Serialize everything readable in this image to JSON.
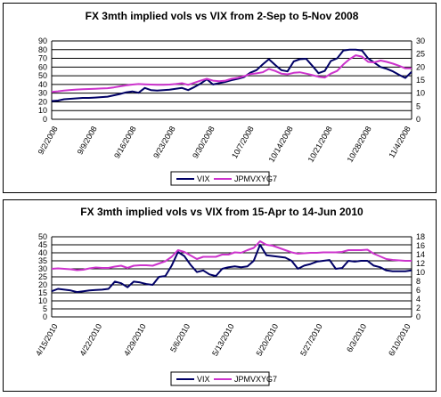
{
  "chart_data": [
    {
      "type": "line",
      "title": "FX 3mth implied vols vs VIX from 2-Sep to 5-Nov 2008",
      "x_tick_labels": [
        "9/2/2008",
        "9/9/2008",
        "9/16/2008",
        "9/23/2008",
        "9/30/2008",
        "10/7/2008",
        "10/14/2008",
        "10/21/2008",
        "10/28/2008",
        "11/4/2008"
      ],
      "ylim_left": [
        0,
        90
      ],
      "yticks_left": [
        "0",
        "10",
        "20",
        "30",
        "40",
        "50",
        "60",
        "70",
        "80",
        "90"
      ],
      "ylim_right": [
        0,
        30
      ],
      "yticks_right": [
        "0",
        "5",
        "10",
        "15",
        "20",
        "25",
        "30"
      ],
      "grid": "horizontal",
      "legend": "bottom",
      "series": [
        {
          "name": "VIX",
          "axis": "left",
          "color": "#000066",
          "values": [
            21.0,
            21.5,
            23.0,
            23.5,
            24.0,
            24.5,
            24.5,
            25.0,
            25.5,
            26.0,
            27.5,
            29.0,
            31.0,
            32.0,
            30.5,
            36.0,
            33.5,
            33.0,
            33.5,
            34.0,
            35.0,
            36.0,
            33.5,
            37.0,
            41.0,
            46.0,
            40.0,
            41.5,
            43.0,
            45.0,
            46.5,
            48.5,
            53.5,
            56.5,
            63.0,
            69.0,
            62.5,
            56.5,
            55.0,
            66.5,
            69.0,
            69.5,
            61.5,
            53.0,
            55.5,
            67.0,
            70.0,
            79.0,
            80.0,
            80.0,
            79.0,
            70.0,
            65.0,
            60.0,
            58.0,
            55.0,
            51.0,
            47.5,
            54.5
          ]
        },
        {
          "name": "JPMVXYG7",
          "axis": "right",
          "color": "#cc33cc",
          "values": [
            10.5,
            10.7,
            11.0,
            11.2,
            11.4,
            11.5,
            11.6,
            11.7,
            11.8,
            11.9,
            12.2,
            12.6,
            13.0,
            13.3,
            13.5,
            13.4,
            13.3,
            13.2,
            13.2,
            13.3,
            13.5,
            13.8,
            13.2,
            14.0,
            14.8,
            15.5,
            14.8,
            14.6,
            14.8,
            15.5,
            15.9,
            16.5,
            17.3,
            17.6,
            18.0,
            19.3,
            18.5,
            17.5,
            17.2,
            17.8,
            18.0,
            17.5,
            16.9,
            16.3,
            16.0,
            17.5,
            18.5,
            21.0,
            23.0,
            24.5,
            24.0,
            22.0,
            21.8,
            22.5,
            22.0,
            21.3,
            20.5,
            19.5,
            19.5
          ]
        }
      ]
    },
    {
      "type": "line",
      "title": "FX 3mth implied vols vs VIX from 15-Apr to 14-Jun 2010",
      "x_tick_labels": [
        "4/15/2010",
        "4/22/2010",
        "4/29/2010",
        "5/6/2010",
        "5/13/2010",
        "5/20/2010",
        "5/27/2010",
        "6/3/2010",
        "6/10/2010"
      ],
      "ylim_left": [
        0,
        50
      ],
      "yticks_left": [
        "0",
        "5",
        "10",
        "15",
        "20",
        "25",
        "30",
        "35",
        "40",
        "45",
        "50"
      ],
      "ylim_right": [
        0,
        18
      ],
      "yticks_right": [
        "0",
        "2",
        "4",
        "6",
        "8",
        "10",
        "12",
        "14",
        "16",
        "18"
      ],
      "grid": "horizontal",
      "legend": "bottom",
      "series": [
        {
          "name": "VIX",
          "axis": "left",
          "color": "#000066",
          "values": [
            16.0,
            17.5,
            17.0,
            16.5,
            15.5,
            16.0,
            16.5,
            16.8,
            17.0,
            17.5,
            22.0,
            21.0,
            18.5,
            22.0,
            21.5,
            20.5,
            20.0,
            25.0,
            25.5,
            32.0,
            40.5,
            38.0,
            32.5,
            28.0,
            29.0,
            26.5,
            25.5,
            30.0,
            31.0,
            31.5,
            31.0,
            31.5,
            35.0,
            45.0,
            38.5,
            38.0,
            37.5,
            37.0,
            35.0,
            30.0,
            32.0,
            33.0,
            34.5,
            35.0,
            35.5,
            30.0,
            30.5,
            35.0,
            34.5,
            35.0,
            35.0,
            32.0,
            31.0,
            29.0,
            28.5,
            28.5,
            28.5,
            29.0
          ]
        },
        {
          "name": "JPMVXYG7",
          "axis": "right",
          "color": "#cc33cc",
          "values": [
            10.8,
            10.9,
            10.8,
            10.7,
            10.5,
            10.6,
            10.9,
            11.1,
            11.0,
            11.0,
            11.3,
            11.5,
            11.0,
            11.5,
            11.6,
            11.6,
            11.5,
            12.0,
            12.5,
            13.5,
            15.0,
            14.6,
            13.8,
            13.0,
            13.5,
            13.5,
            13.5,
            14.0,
            14.0,
            14.5,
            14.4,
            15.0,
            15.5,
            17.0,
            16.2,
            16.0,
            15.5,
            15.0,
            14.5,
            14.2,
            14.3,
            14.4,
            14.4,
            14.5,
            14.5,
            14.5,
            14.6,
            15.0,
            15.0,
            15.0,
            15.1,
            14.2,
            13.6,
            13.0,
            12.8,
            12.7,
            12.6,
            12.6
          ]
        }
      ]
    }
  ]
}
